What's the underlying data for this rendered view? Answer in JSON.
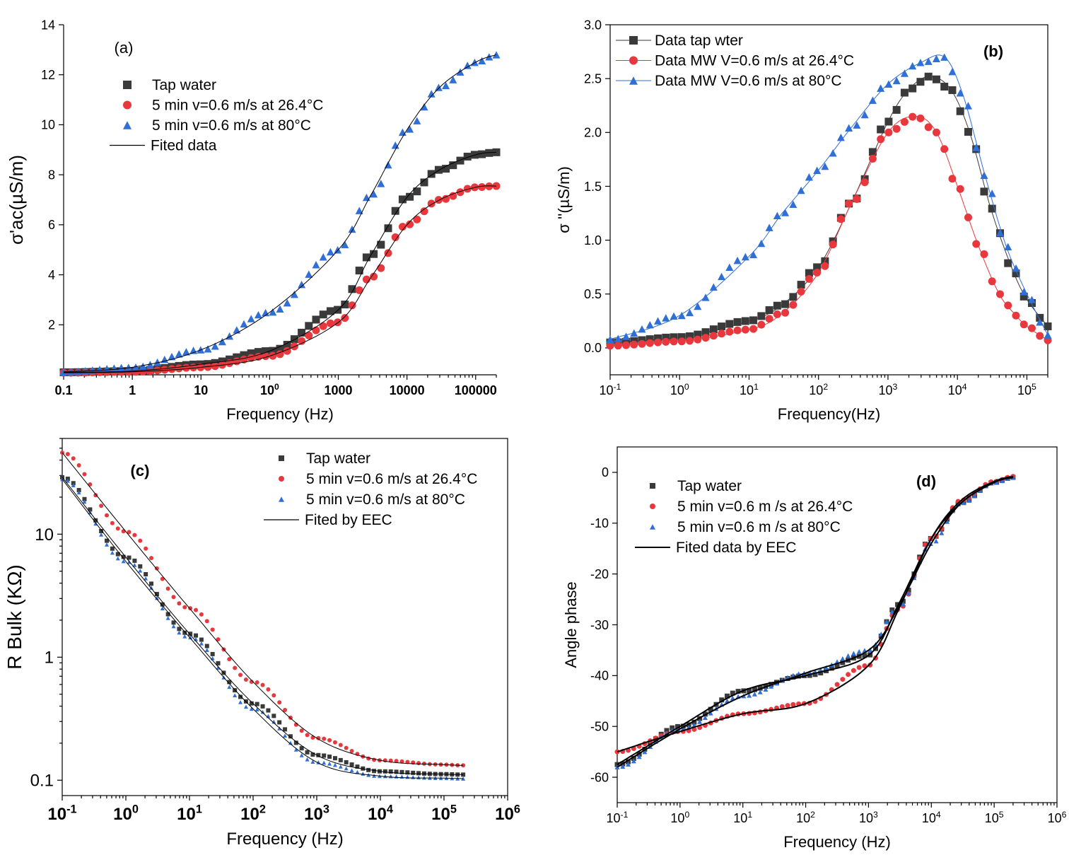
{
  "chart_data": [
    {
      "id": "a",
      "type": "scatter",
      "panel_label": "(a)",
      "xlabel": "Frequency (Hz)",
      "ylabel": "σ'ac(µS/m)",
      "xscale": "log",
      "xlim": [
        0.1,
        200000
      ],
      "ylim": [
        0,
        14
      ],
      "xticks": [
        "0.1",
        "1",
        "10",
        "100",
        "1000",
        "10000",
        "100000"
      ],
      "yticks": [
        "2",
        "4",
        "6",
        "8",
        "10",
        "12",
        "14"
      ],
      "legend_position": "top-left",
      "series": [
        {
          "name": "Tap water",
          "marker": "square",
          "color": "#3a3a3a",
          "x": [
            0.1,
            1,
            10,
            100,
            1000,
            3000,
            10000,
            30000,
            100000,
            200000
          ],
          "y": [
            0.1,
            0.15,
            0.42,
            0.95,
            2.6,
            4.8,
            7.1,
            8.2,
            8.8,
            8.9
          ]
        },
        {
          "name": "5 min v=0.6 m/s at 26.4°C",
          "marker": "circle",
          "color": "#e8383d",
          "x": [
            0.1,
            1,
            10,
            100,
            1000,
            3000,
            10000,
            30000,
            100000,
            200000
          ],
          "y": [
            0.08,
            0.12,
            0.3,
            0.75,
            2.1,
            3.9,
            6.0,
            7.0,
            7.5,
            7.55
          ]
        },
        {
          "name": "5 min v=0.6 m/s at 80°C",
          "marker": "triangle",
          "color": "#2f6fd6",
          "x": [
            0.1,
            1,
            10,
            100,
            1000,
            3000,
            10000,
            30000,
            100000,
            200000
          ],
          "y": [
            0.12,
            0.3,
            1.0,
            2.5,
            5.0,
            7.2,
            9.8,
            11.5,
            12.5,
            12.8
          ]
        },
        {
          "name": "Fited data",
          "line": true,
          "color": "#000000"
        }
      ]
    },
    {
      "id": "b",
      "type": "line",
      "panel_label": "(b)",
      "xlabel": "Frequency(Hz)",
      "ylabel": "σ ''(µS/m)",
      "xscale": "log",
      "xlim": [
        0.1,
        200000
      ],
      "ylim": [
        -0.25,
        3.0
      ],
      "xticks": [
        "10-1",
        "100",
        "101",
        "102",
        "103",
        "104",
        "105"
      ],
      "yticks": [
        "0.0",
        "0.5",
        "1.0",
        "1.5",
        "2.0",
        "2.5",
        "3.0"
      ],
      "legend_position": "top-left",
      "series": [
        {
          "name": "Data  tap wter",
          "marker": "square",
          "color": "#3a3a3a",
          "x": [
            0.1,
            1,
            10,
            30,
            100,
            300,
            1000,
            2000,
            4000,
            8000,
            15000,
            30000,
            60000,
            100000,
            200000
          ],
          "y": [
            0.05,
            0.1,
            0.25,
            0.4,
            0.75,
            1.35,
            2.1,
            2.4,
            2.52,
            2.4,
            2.0,
            1.3,
            0.75,
            0.45,
            0.2
          ]
        },
        {
          "name": "Data MW V=0.6 m/s at 26.4°C",
          "marker": "circle",
          "color": "#e8383d",
          "x": [
            0.1,
            1,
            10,
            30,
            100,
            300,
            1000,
            2500,
            5000,
            10000,
            20000,
            40000,
            70000,
            100000,
            200000
          ],
          "y": [
            0.02,
            0.06,
            0.17,
            0.32,
            0.7,
            1.35,
            2.0,
            2.15,
            2.0,
            1.5,
            0.95,
            0.5,
            0.3,
            0.2,
            0.07
          ]
        },
        {
          "name": "Data MW V=0.6 m/s at  80°C",
          "marker": "triangle",
          "color": "#2f6fd6",
          "x": [
            0.1,
            1,
            10,
            30,
            100,
            300,
            1000,
            3000,
            6500,
            12000,
            25000,
            50000,
            100000,
            200000
          ],
          "y": [
            0.08,
            0.3,
            0.85,
            1.25,
            1.65,
            2.05,
            2.45,
            2.65,
            2.7,
            2.35,
            1.6,
            0.95,
            0.5,
            0.12
          ]
        }
      ]
    },
    {
      "id": "c",
      "type": "scatter",
      "panel_label": "(c)",
      "xlabel": "Frequency (Hz)",
      "ylabel": "R Bulk  (KΩ)",
      "xscale": "log",
      "yscale": "log",
      "xlim": [
        0.1,
        1000000
      ],
      "ylim": [
        0.075,
        60
      ],
      "xticks": [
        "10-1",
        "100",
        "101",
        "102",
        "103",
        "104",
        "105",
        "106"
      ],
      "yticks": [
        "0.1",
        "1",
        "10"
      ],
      "legend_position": "top-right",
      "series": [
        {
          "name": "Tap water",
          "marker": "square",
          "color": "#3a3a3a",
          "x": [
            0.1,
            1,
            10,
            100,
            1000,
            10000,
            100000,
            200000
          ],
          "y": [
            29,
            6.5,
            1.55,
            0.42,
            0.16,
            0.118,
            0.112,
            0.111
          ]
        },
        {
          "name": "5 min v=0.6 m/s at 26.4°C",
          "marker": "circle",
          "color": "#e8383d",
          "x": [
            0.1,
            1,
            10,
            100,
            1000,
            10000,
            100000,
            200000
          ],
          "y": [
            46,
            10.5,
            2.5,
            0.63,
            0.22,
            0.145,
            0.134,
            0.132
          ]
        },
        {
          "name": "5 min v=0.6 m/s at 80°C",
          "marker": "triangle",
          "color": "#2f6fd6",
          "x": [
            0.1,
            1,
            10,
            100,
            1000,
            10000,
            100000,
            200000
          ],
          "y": [
            28,
            6.0,
            1.45,
            0.38,
            0.14,
            0.108,
            0.104,
            0.103
          ]
        },
        {
          "name": "Fited by EEC",
          "line": true,
          "color": "#000000"
        }
      ]
    },
    {
      "id": "d",
      "type": "scatter",
      "panel_label": "(d)",
      "xlabel": "Frequency (Hz)",
      "ylabel": "Angle phase",
      "xscale": "log",
      "xlim": [
        0.1,
        1000000
      ],
      "ylim": [
        -65,
        5
      ],
      "xticks": [
        "10-1",
        "100",
        "101",
        "102",
        "103",
        "104",
        "105",
        "106"
      ],
      "yticks": [
        "0",
        "-10",
        "-20",
        "-30",
        "-40",
        "-50",
        "-60"
      ],
      "legend_position": "top-left",
      "series": [
        {
          "name": "Tap water",
          "marker": "square",
          "color": "#3a3a3a",
          "x": [
            0.1,
            1,
            10,
            100,
            1000,
            3000,
            10000,
            30000,
            100000,
            200000
          ],
          "y": [
            -57.5,
            -50,
            -43,
            -40,
            -36,
            -26,
            -13,
            -6,
            -2,
            -1
          ]
        },
        {
          "name": "5 min v=0.6 m /s at 26.4°C",
          "marker": "circle",
          "color": "#e8383d",
          "x": [
            0.1,
            1,
            10,
            100,
            1000,
            3000,
            10000,
            30000,
            100000,
            200000
          ],
          "y": [
            -55,
            -51,
            -47.5,
            -45.5,
            -38,
            -27,
            -13,
            -5.5,
            -1.8,
            -0.8
          ]
        },
        {
          "name": "5 min v=0.6 m /s at 80°C",
          "marker": "triangle",
          "color": "#2f6fd6",
          "x": [
            0.1,
            1,
            10,
            100,
            1000,
            3000,
            10000,
            30000,
            100000,
            200000
          ],
          "y": [
            -58,
            -50.5,
            -44,
            -39.5,
            -35,
            -26.5,
            -14,
            -6,
            -2,
            -1
          ]
        },
        {
          "name": "Fited data by EEC",
          "line": true,
          "color": "#000000"
        }
      ]
    }
  ]
}
